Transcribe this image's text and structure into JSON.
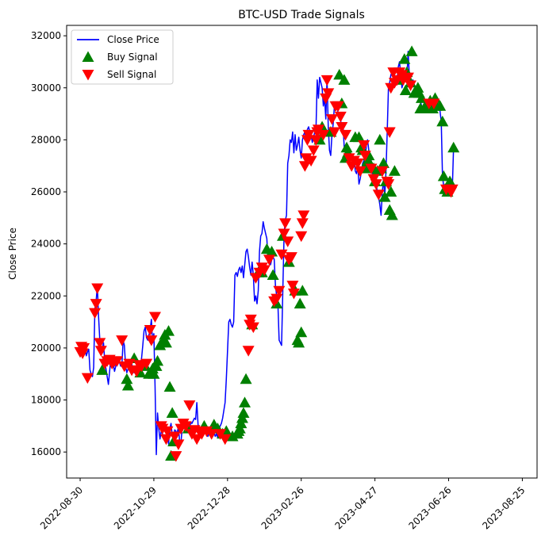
{
  "chart_data": {
    "type": "line",
    "title": "BTC-USD Trade Signals",
    "xlabel": "",
    "ylabel": "Close Price",
    "x_start": "2022-08-30",
    "x_end": "2023-08-25",
    "xlim": [
      "2022-08-19",
      "2023-09-06"
    ],
    "ylim": [
      15000,
      32400
    ],
    "x_ticks": [
      "2022-08-30",
      "2022-10-29",
      "2022-12-28",
      "2023-02-26",
      "2023-04-27",
      "2023-06-26",
      "2023-08-25"
    ],
    "y_ticks": [
      16000,
      18000,
      20000,
      22000,
      24000,
      26000,
      28000,
      30000,
      32000
    ],
    "grid": false,
    "legend": {
      "placement": "top-left",
      "entries": [
        {
          "label": "Close Price",
          "marker": "line",
          "color": "#0000ff"
        },
        {
          "label": "Buy Signal",
          "marker": "triangle-up",
          "color": "#008000"
        },
        {
          "label": "Sell Signal",
          "marker": "triangle-down",
          "color": "#ff0000"
        }
      ]
    },
    "series": [
      {
        "name": "Close Price",
        "color": "#0000ff",
        "values": [
          19900,
          20050,
          19800,
          19950,
          20100,
          19700,
          19850,
          19950,
          19150,
          19000,
          18900,
          19250,
          21500,
          21800,
          22400,
          21200,
          20300,
          20000,
          19950,
          20200,
          19500,
          19200,
          18900,
          18600,
          19100,
          19600,
          19450,
          19350,
          19100,
          19300,
          19600,
          19550,
          19450,
          19300,
          19350,
          20300,
          20100,
          19300,
          19050,
          19200,
          19300,
          19250,
          19400,
          19100,
          19050,
          19200,
          19000,
          19050,
          19300,
          19350,
          19600,
          20100,
          20650,
          20800,
          20400,
          20300,
          20500,
          20700,
          21100,
          20200,
          20550,
          18500,
          15900,
          17500,
          16900,
          16500,
          16800,
          16700,
          16600,
          16500,
          16450,
          16800,
          16300,
          16900,
          17100,
          16600,
          16550,
          16850,
          16800,
          16700,
          17000,
          16400,
          16300,
          16900,
          17150,
          17100,
          17000,
          17050,
          16900,
          16800,
          17150,
          17100,
          17200,
          17300,
          17250,
          17900,
          17050,
          16900,
          16800,
          16700,
          16850,
          16750,
          16800,
          16650,
          16600,
          16700,
          16650,
          16750,
          16800,
          16750,
          16600,
          16700,
          16550,
          16900,
          17000,
          17100,
          17300,
          17600,
          17900,
          18800,
          19900,
          21000,
          21100,
          20900,
          20800,
          21000,
          22800,
          22900,
          22750,
          23000,
          23100,
          22900,
          23150,
          22700,
          23200,
          23700,
          23800,
          23500,
          23100,
          22800,
          23300,
          22800,
          21800,
          22000,
          21700,
          22200,
          23700,
          24300,
          24400,
          24850,
          24600,
          24400,
          24200,
          23300,
          23500,
          23200,
          23400,
          23500,
          23400,
          22400,
          22000,
          21700,
          20300,
          20200,
          20100,
          22200,
          24300,
          24900,
          25100,
          27100,
          27400,
          28000,
          27900,
          28300,
          27500,
          28200,
          27600,
          27800,
          28100,
          27600,
          27300,
          28000,
          28200,
          28300,
          28000,
          28400,
          28500,
          28300,
          28200,
          27900,
          28100,
          28300,
          28400,
          30300,
          29600,
          30400,
          30200,
          30000,
          29300,
          29600,
          28800,
          30350,
          28500,
          27600,
          27400,
          28200,
          28600,
          29300,
          29200,
          29400,
          29000,
          28900,
          28800,
          28400,
          28600,
          27700,
          27500,
          27300,
          27200,
          27000,
          26900,
          27100,
          27200,
          27300,
          26800,
          26700,
          27000,
          26300,
          26500,
          26800,
          27100,
          27200,
          27000,
          27800,
          28000,
          27600,
          27100,
          27200,
          26700,
          27000,
          26900,
          26300,
          26000,
          25800,
          25500,
          25100,
          26000,
          26500,
          25800,
          26800,
          28300,
          30000,
          30200,
          30500,
          30600,
          30500,
          30400,
          30100,
          30300,
          30800,
          31000,
          30500,
          30000,
          30200,
          30600,
          30400,
          30300,
          31400,
          30500,
          30400,
          30200,
          30300,
          30100,
          30000,
          29900,
          29800,
          30000,
          29500,
          29300,
          29200,
          29300,
          29500,
          29400,
          29300,
          29200,
          29400,
          29300,
          29500,
          29600,
          29400,
          29200,
          29400,
          29300,
          29100,
          28700,
          26600,
          26200,
          26100,
          26000,
          26200,
          26400,
          26100,
          26000,
          26100,
          27700
        ]
      }
    ],
    "buy_signals": [
      [
        18,
        19150
      ],
      [
        38,
        18800
      ],
      [
        39,
        18550
      ],
      [
        44,
        19600
      ],
      [
        49,
        19050
      ],
      [
        53,
        19300
      ],
      [
        56,
        19000
      ],
      [
        59,
        19200
      ],
      [
        60,
        19000
      ],
      [
        62,
        19300
      ],
      [
        63,
        19500
      ],
      [
        65,
        20100
      ],
      [
        68,
        20300
      ],
      [
        69,
        20500
      ],
      [
        70,
        20200
      ],
      [
        72,
        20650
      ],
      [
        73,
        18500
      ],
      [
        74,
        15850
      ],
      [
        75,
        17500
      ],
      [
        76,
        16400
      ],
      [
        88,
        16900
      ],
      [
        101,
        17000
      ],
      [
        109,
        17050
      ],
      [
        112,
        16900
      ],
      [
        116,
        16700
      ],
      [
        119,
        16800
      ],
      [
        124,
        16600
      ],
      [
        128,
        16700
      ],
      [
        129,
        16800
      ],
      [
        130,
        16900
      ],
      [
        131,
        17100
      ],
      [
        132,
        17300
      ],
      [
        133,
        17500
      ],
      [
        134,
        17900
      ],
      [
        135,
        18800
      ],
      [
        140,
        20900
      ],
      [
        145,
        22900
      ],
      [
        148,
        22900
      ],
      [
        152,
        23800
      ],
      [
        156,
        23700
      ],
      [
        157,
        22800
      ],
      [
        160,
        21700
      ],
      [
        165,
        24300
      ],
      [
        170,
        23300
      ],
      [
        175,
        22200
      ],
      [
        177,
        20300
      ],
      [
        178,
        20200
      ],
      [
        179,
        21700
      ],
      [
        180,
        20600
      ],
      [
        181,
        22200
      ],
      [
        195,
        28000
      ],
      [
        197,
        28500
      ],
      [
        204,
        28300
      ],
      [
        211,
        30500
      ],
      [
        213,
        29400
      ],
      [
        215,
        30300
      ],
      [
        216,
        27300
      ],
      [
        217,
        27700
      ],
      [
        218,
        27500
      ],
      [
        224,
        28100
      ],
      [
        227,
        28100
      ],
      [
        229,
        27700
      ],
      [
        230,
        27600
      ],
      [
        231,
        26900
      ],
      [
        232,
        26900
      ],
      [
        234,
        27200
      ],
      [
        235,
        27400
      ],
      [
        237,
        27000
      ],
      [
        238,
        26900
      ],
      [
        239,
        26900
      ],
      [
        240,
        26400
      ],
      [
        242,
        26800
      ],
      [
        244,
        28000
      ],
      [
        245,
        26900
      ],
      [
        247,
        27100
      ],
      [
        248,
        25800
      ],
      [
        249,
        26400
      ],
      [
        252,
        25300
      ],
      [
        253,
        26000
      ],
      [
        254,
        25100
      ],
      [
        256,
        26800
      ],
      [
        259,
        30300
      ],
      [
        264,
        31100
      ],
      [
        265,
        29900
      ],
      [
        266,
        30600
      ],
      [
        269,
        30200
      ],
      [
        270,
        31400
      ],
      [
        272,
        29800
      ],
      [
        275,
        30000
      ],
      [
        276,
        29800
      ],
      [
        277,
        29200
      ],
      [
        278,
        29600
      ],
      [
        281,
        29300
      ],
      [
        283,
        29200
      ],
      [
        285,
        29500
      ],
      [
        287,
        29200
      ],
      [
        289,
        29600
      ],
      [
        290,
        29300
      ],
      [
        293,
        29300
      ],
      [
        295,
        28700
      ],
      [
        296,
        26600
      ],
      [
        297,
        26100
      ],
      [
        299,
        26000
      ],
      [
        301,
        26400
      ],
      [
        304,
        27700
      ]
    ],
    "sell_signals": [
      [
        0,
        19850
      ],
      [
        1,
        20050
      ],
      [
        2,
        19800
      ],
      [
        3,
        20000
      ],
      [
        6,
        18850
      ],
      [
        12,
        21350
      ],
      [
        13,
        21700
      ],
      [
        14,
        22300
      ],
      [
        16,
        20200
      ],
      [
        17,
        19900
      ],
      [
        20,
        19400
      ],
      [
        22,
        19500
      ],
      [
        24,
        19550
      ],
      [
        26,
        19400
      ],
      [
        28,
        19500
      ],
      [
        30,
        19500
      ],
      [
        34,
        20300
      ],
      [
        36,
        19300
      ],
      [
        40,
        19400
      ],
      [
        42,
        19150
      ],
      [
        46,
        19100
      ],
      [
        48,
        19350
      ],
      [
        50,
        19300
      ],
      [
        54,
        19400
      ],
      [
        57,
        20700
      ],
      [
        58,
        20300
      ],
      [
        61,
        21200
      ],
      [
        66,
        17000
      ],
      [
        67,
        16900
      ],
      [
        70,
        16500
      ],
      [
        71,
        16800
      ],
      [
        77,
        16600
      ],
      [
        78,
        15850
      ],
      [
        80,
        16300
      ],
      [
        82,
        16900
      ],
      [
        84,
        17100
      ],
      [
        86,
        17000
      ],
      [
        89,
        17800
      ],
      [
        91,
        16700
      ],
      [
        93,
        16850
      ],
      [
        95,
        16500
      ],
      [
        97,
        16800
      ],
      [
        99,
        16700
      ],
      [
        103,
        16800
      ],
      [
        107,
        16700
      ],
      [
        114,
        16700
      ],
      [
        118,
        16500
      ],
      [
        137,
        19900
      ],
      [
        138,
        20900
      ],
      [
        139,
        21100
      ],
      [
        141,
        20800
      ],
      [
        143,
        22700
      ],
      [
        146,
        22900
      ],
      [
        148,
        23100
      ],
      [
        150,
        23000
      ],
      [
        154,
        23400
      ],
      [
        158,
        21800
      ],
      [
        160,
        21900
      ],
      [
        162,
        22200
      ],
      [
        164,
        23600
      ],
      [
        166,
        24400
      ],
      [
        167,
        24800
      ],
      [
        169,
        24100
      ],
      [
        170,
        23400
      ],
      [
        172,
        23500
      ],
      [
        173,
        22400
      ],
      [
        174,
        22100
      ],
      [
        180,
        24300
      ],
      [
        181,
        24800
      ],
      [
        182,
        25100
      ],
      [
        183,
        27000
      ],
      [
        184,
        27300
      ],
      [
        185,
        28000
      ],
      [
        186,
        28200
      ],
      [
        188,
        27200
      ],
      [
        190,
        27600
      ],
      [
        192,
        28000
      ],
      [
        193,
        28300
      ],
      [
        194,
        28400
      ],
      [
        198,
        28200
      ],
      [
        200,
        29600
      ],
      [
        201,
        30300
      ],
      [
        202,
        29800
      ],
      [
        205,
        28800
      ],
      [
        207,
        28300
      ],
      [
        208,
        29300
      ],
      [
        210,
        29300
      ],
      [
        212,
        28900
      ],
      [
        213,
        28500
      ],
      [
        216,
        28200
      ],
      [
        219,
        27300
      ],
      [
        221,
        27000
      ],
      [
        223,
        27200
      ],
      [
        226,
        27100
      ],
      [
        228,
        26800
      ],
      [
        231,
        27800
      ],
      [
        232,
        27400
      ],
      [
        237,
        26900
      ],
      [
        239,
        26500
      ],
      [
        241,
        26300
      ],
      [
        243,
        25900
      ],
      [
        246,
        26800
      ],
      [
        250,
        26400
      ],
      [
        251,
        26300
      ],
      [
        252,
        28300
      ],
      [
        253,
        30000
      ],
      [
        255,
        30600
      ],
      [
        256,
        30200
      ],
      [
        258,
        30300
      ],
      [
        260,
        30600
      ],
      [
        262,
        30500
      ],
      [
        263,
        30300
      ],
      [
        267,
        30400
      ],
      [
        269,
        30100
      ],
      [
        284,
        29400
      ],
      [
        288,
        29400
      ],
      [
        298,
        26100
      ],
      [
        302,
        26000
      ],
      [
        303,
        26100
      ]
    ]
  }
}
